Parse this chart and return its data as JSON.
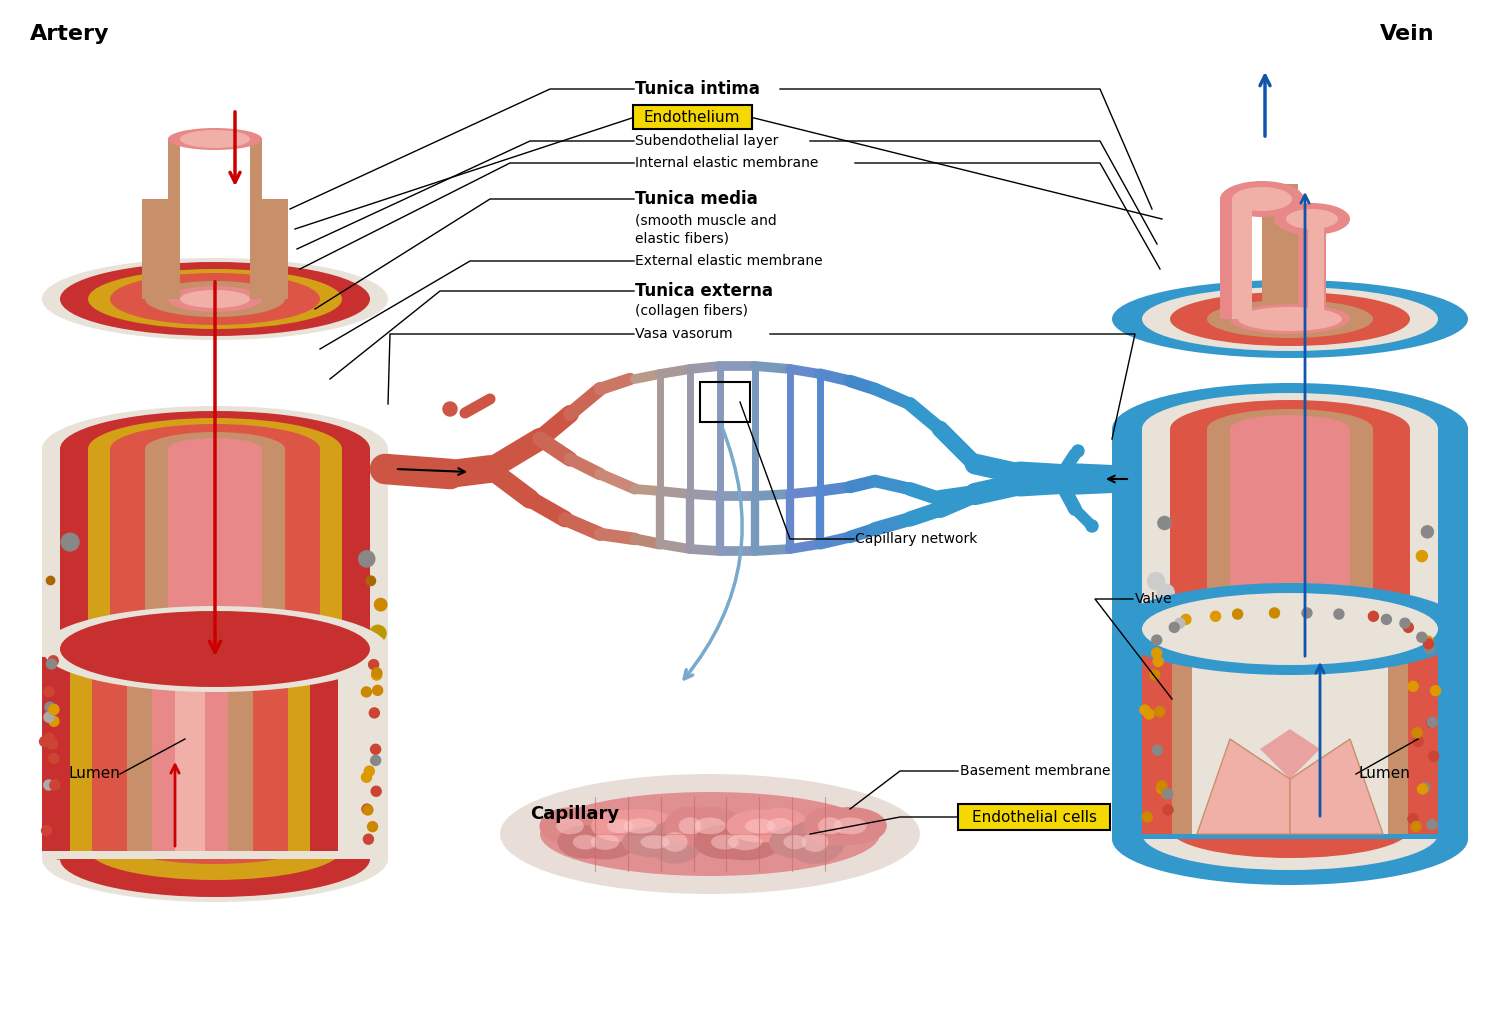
{
  "bg_color": "#ffffff",
  "artery_label": "Artery",
  "vein_label": "Vein",
  "capillary_label": "Capillary",
  "lumen_label": "Lumen",
  "lumen2_label": "Lumen",
  "tunica_intima_label": "Tunica intima",
  "endothelium_label": "Endothelium",
  "subendothelial_label": "Subendothelial layer",
  "internal_elastic_label": "Internal elastic membrane",
  "tunica_media_label": "Tunica media",
  "smooth_muscle_label": "(smooth muscle and",
  "elastic_fibers_label": "elastic fibers)",
  "external_elastic_label": "External elastic membrane",
  "tunica_externa_label": "Tunica externa",
  "collagen_label": "(collagen fibers)",
  "vasa_vasorum_label": "Vasa vasorum",
  "capillary_network_label": "Capillary network",
  "valve_label": "Valve",
  "basement_membrane_label": "Basement membrane",
  "endothelial_cells_label": "Endothelial cells",
  "yellow_box_color": "#f5d800",
  "arrow_red_color": "#cc0000",
  "arrow_blue_color": "#1155aa"
}
